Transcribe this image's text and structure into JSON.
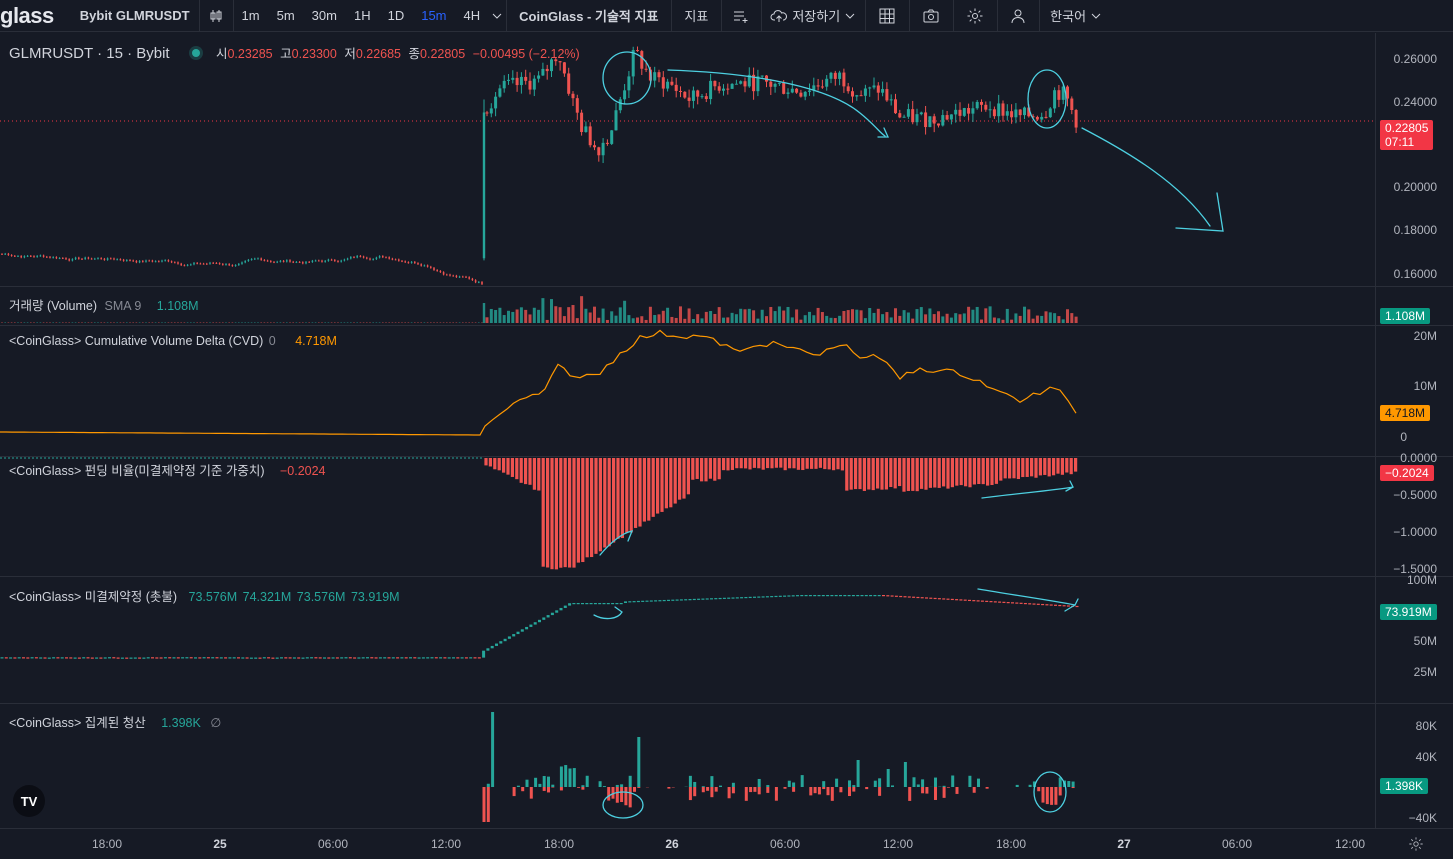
{
  "toolbar": {
    "logo": "glass",
    "symbol": "Bybit GLMRUSDT",
    "intervals": [
      {
        "label": "1m",
        "active": false
      },
      {
        "label": "5m",
        "active": false
      },
      {
        "label": "30m",
        "active": false
      },
      {
        "label": "1H",
        "active": false
      },
      {
        "label": "1D",
        "active": false
      },
      {
        "label": "15m",
        "active": true
      },
      {
        "label": "4H",
        "active": false
      }
    ],
    "indicators_label": "CoinGlass - 기술적 지표",
    "indicators2_label": "지표",
    "save_label": "저장하기",
    "language_label": "한국어"
  },
  "main_legend": {
    "title": "GLMRUSDT · 15 · Bybit",
    "o_label": "시",
    "o": "0.23285",
    "h_label": "고",
    "h": "0.23300",
    "l_label": "저",
    "l": "0.22685",
    "c_label": "종",
    "c": "0.22805",
    "change": "−0.00495 (−2.12%)"
  },
  "volume_legend": {
    "name": "거래량 (Volume)",
    "ma": "SMA 9",
    "value": "1.108M"
  },
  "cvd_legend": {
    "name": "<CoinGlass> Cumulative Volume Delta (CVD)",
    "param": "0",
    "value": "4.718M"
  },
  "funding_legend": {
    "name": "<CoinGlass> 펀딩 비율(미결제약정 기준 가중치)",
    "value": "−0.2024"
  },
  "oi_legend": {
    "name": "<CoinGlass> 미결제약정 (촛불)",
    "o": "73.576M",
    "h": "74.321M",
    "l": "73.576M",
    "c": "73.919M"
  },
  "liq_legend": {
    "name": "<CoinGlass> 집계된 청산",
    "value": "1.398K",
    "icon": "∅"
  },
  "axes": {
    "price": [
      "0.26000",
      "0.24000",
      "0.20000",
      "0.18000",
      "0.16000"
    ],
    "price_badge": "0.22805",
    "price_countdown": "07:11",
    "volume_badge": "1.108M",
    "cvd": [
      "20M",
      "10M",
      "0"
    ],
    "cvd_badge": "4.718M",
    "funding": [
      "0.0000",
      "−0.5000",
      "−1.0000",
      "−1.5000"
    ],
    "funding_badge": "−0.2024",
    "oi": [
      "100M",
      "50M",
      "25M"
    ],
    "oi_badge": "73.919M",
    "liq": [
      "80K",
      "40K",
      "−40K"
    ],
    "liq_badge": "1.398K"
  },
  "time_axis": [
    {
      "label": "18:00",
      "bold": false
    },
    {
      "label": "25",
      "bold": true
    },
    {
      "label": "06:00",
      "bold": false
    },
    {
      "label": "12:00",
      "bold": false
    },
    {
      "label": "18:00",
      "bold": false
    },
    {
      "label": "26",
      "bold": true
    },
    {
      "label": "06:00",
      "bold": false
    },
    {
      "label": "12:00",
      "bold": false
    },
    {
      "label": "18:00",
      "bold": false
    },
    {
      "label": "27",
      "bold": true
    },
    {
      "label": "06:00",
      "bold": false
    },
    {
      "label": "12:00",
      "bold": false
    }
  ],
  "colors": {
    "up": "#26a69a",
    "down": "#ef5350",
    "cvd": "#ff9800",
    "annotation": "#4dd0e1",
    "bg": "#161a25",
    "grid": "#2a2e39"
  }
}
